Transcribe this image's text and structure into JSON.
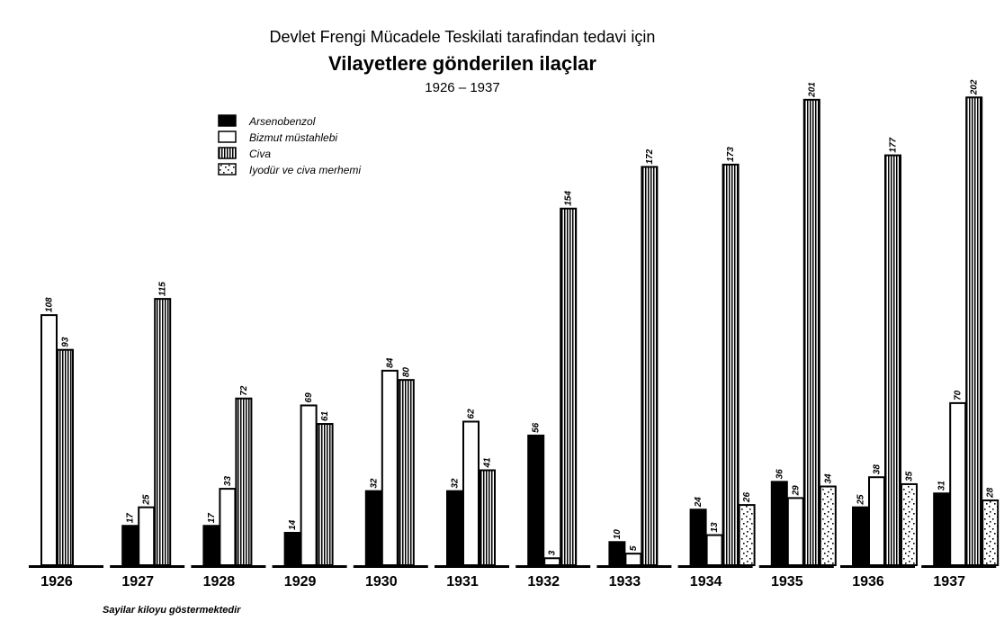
{
  "chart_data": {
    "type": "bar",
    "subtitle": "Devlet Frengi Mücadele Teskilati tarafindan tedavi için",
    "title": "Vilayetlere gönderilen ilaçlar",
    "range_label": "1926 – 1937",
    "footnote": "Sayilar kiloyu göstermektedir",
    "legend_position": "top-left",
    "grid": false,
    "ylim": [
      0,
      210
    ],
    "categories": [
      "1926",
      "1927",
      "1928",
      "1929",
      "1930",
      "1931",
      "1932",
      "1933",
      "1934",
      "1935",
      "1936",
      "1937"
    ],
    "series": [
      {
        "name": "Arsenobenzol",
        "pattern": "solid",
        "color": "#000000",
        "values": [
          null,
          17,
          17,
          14,
          32,
          32,
          56,
          10,
          24,
          36,
          25,
          31
        ]
      },
      {
        "name": "Bizmut müstahlebi",
        "pattern": "empty",
        "color": "#ffffff",
        "values": [
          108,
          25,
          33,
          69,
          84,
          62,
          3,
          5,
          13,
          29,
          38,
          70
        ]
      },
      {
        "name": "Civa",
        "pattern": "vertical-stripes",
        "color": "#000000",
        "values": [
          93,
          115,
          72,
          61,
          80,
          41,
          154,
          172,
          173,
          201,
          177,
          202
        ]
      },
      {
        "name": "Iyodür ve civa merhemi",
        "pattern": "dots",
        "color": "#000000",
        "values": [
          null,
          null,
          null,
          null,
          null,
          null,
          null,
          null,
          26,
          34,
          35,
          28
        ]
      }
    ]
  }
}
